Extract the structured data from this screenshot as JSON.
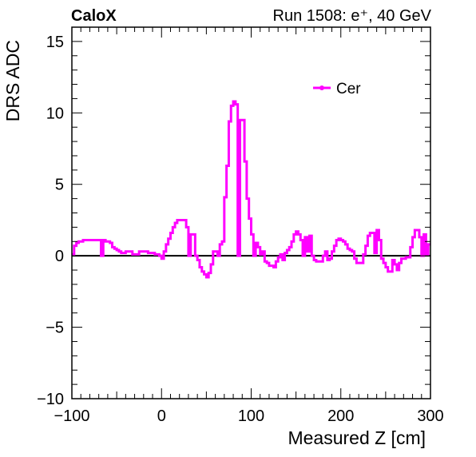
{
  "header": {
    "brand": "CaloX",
    "run_info": "Run 1508: e⁺, 40 GeV"
  },
  "chart_data": {
    "type": "line",
    "style": "histogram-step",
    "xlabel": "Measured Z [cm]",
    "ylabel": "DRS ADC",
    "xlim": [
      -100,
      300
    ],
    "ylim": [
      -10,
      16
    ],
    "x_ticks": [
      -100,
      0,
      100,
      200,
      300
    ],
    "x_tick_labels": [
      "−100",
      "0",
      "100",
      "200",
      "300"
    ],
    "y_ticks": [
      -10,
      -5,
      0,
      5,
      10,
      15
    ],
    "y_tick_labels": [
      "−10",
      "−5",
      "0",
      "5",
      "10",
      "15"
    ],
    "grid": false,
    "zero_line": true,
    "legend_position": "top-right",
    "colors": {
      "series": "#ff00ff",
      "axis": "#000000",
      "zero_line": "#000000"
    },
    "series": [
      {
        "name": "Cer",
        "bin_width": 2.5,
        "x_start": -100,
        "values": [
          0.1,
          0.7,
          0.9,
          1.0,
          1.0,
          1.1,
          1.1,
          1.1,
          1.1,
          1.1,
          1.1,
          1.1,
          1.1,
          0.0,
          1.1,
          1.0,
          1.0,
          0.9,
          0.6,
          0.5,
          0.4,
          0.3,
          0.2,
          0.2,
          0.3,
          0.3,
          0.3,
          0.1,
          0.1,
          0.1,
          0.3,
          0.3,
          0.3,
          0.3,
          0.2,
          0.2,
          0.2,
          0.1,
          0.1,
          0.0,
          -0.2,
          0.3,
          0.8,
          1.2,
          1.6,
          2.0,
          2.3,
          2.5,
          2.5,
          2.5,
          2.5,
          2.0,
          0.0,
          1.5,
          1.5,
          0.0,
          -0.3,
          -0.8,
          -1.1,
          -1.3,
          -1.5,
          -1.2,
          -0.6,
          0.3,
          0.3,
          0.0,
          0.8,
          1.0,
          4.1,
          6.3,
          9.4,
          10.5,
          10.8,
          10.6,
          0.0,
          9.5,
          9.5,
          6.6,
          4.0,
          2.6,
          1.5,
          0.0,
          0.9,
          0.6,
          0.1,
          0.3,
          -0.4,
          -0.5,
          -0.7,
          -0.7,
          -0.8,
          -0.4,
          -0.1,
          0.1,
          -0.3,
          0.2,
          0.4,
          0.6,
          1.0,
          1.5,
          1.7,
          1.5,
          1.1,
          0.0,
          1.3,
          0.3,
          1.4,
          0.0,
          -0.3,
          -0.4,
          -0.4,
          -0.4,
          0.0,
          0.3,
          -0.3,
          -0.2,
          0.3,
          0.7,
          1.1,
          1.2,
          1.1,
          1.0,
          0.8,
          0.5,
          0.4,
          0.3,
          -0.2,
          -0.5,
          -0.5,
          -0.5,
          0.1,
          0.7,
          1.4,
          1.6,
          1.6,
          0.2,
          1.8,
          1.1,
          -0.2,
          -0.5,
          -0.8,
          -1.1,
          -1.1,
          -0.3,
          -0.6,
          -1.0,
          -0.5,
          -0.2,
          -0.2,
          -0.1,
          -0.1,
          0.6,
          1.3,
          1.8,
          1.8,
          1.3,
          0.0,
          1.5,
          0.1,
          0.8
        ]
      }
    ]
  }
}
